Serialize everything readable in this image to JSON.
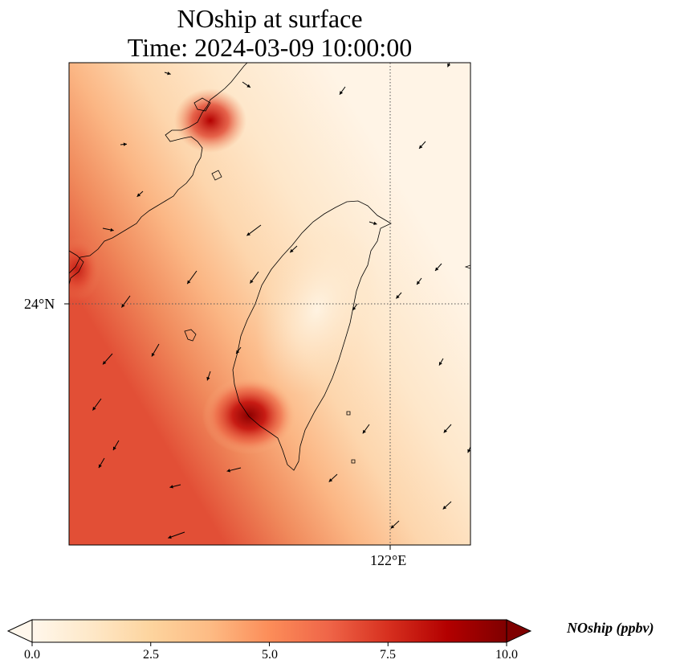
{
  "title": {
    "line1": "NOship at surface",
    "line2": "Time: 2024-03-09 10:00:00"
  },
  "axes": {
    "lat_tick_label": "24°N",
    "lon_tick_label": "122°E"
  },
  "colorbar": {
    "label": "NOship (ppbv)",
    "ticks": [
      "0.0",
      "2.5",
      "5.0",
      "7.5",
      "10.0"
    ],
    "min": 0,
    "max": 10,
    "extend": "both",
    "colormap": "OrRd",
    "colors": [
      "#fff7ec",
      "#fee8c8",
      "#fdd49e",
      "#fdbb84",
      "#fc8d59",
      "#ef6548",
      "#d7301f",
      "#b30000",
      "#7f0000"
    ]
  },
  "map": {
    "variable": "NOship",
    "level": "surface",
    "gridlines": "dotted",
    "features": [
      "coastline",
      "wind-vectors"
    ]
  }
}
